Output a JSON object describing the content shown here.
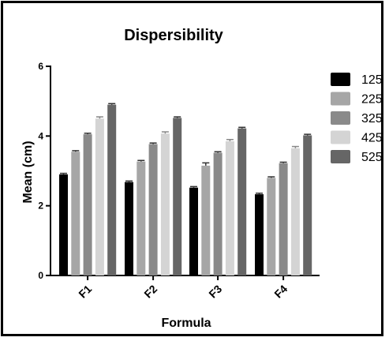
{
  "chart_data": {
    "type": "bar",
    "title": "Dispersibility",
    "xlabel": "Formula",
    "ylabel": "Mean (cm)",
    "categories": [
      "F1",
      "F2",
      "F3",
      "F4"
    ],
    "ylim": [
      0,
      6
    ],
    "yticks": [
      "0",
      "2",
      "4",
      "6"
    ],
    "legend_position": "right",
    "series": [
      {
        "name": "125",
        "values": [
          2.9,
          2.68,
          2.52,
          2.33
        ],
        "errors": [
          0.03,
          0.03,
          0.03,
          0.03
        ],
        "color": "#000000"
      },
      {
        "name": "225",
        "values": [
          3.55,
          3.27,
          3.15,
          2.8
        ],
        "errors": [
          0.03,
          0.03,
          0.08,
          0.03
        ],
        "color": "#a6a6a6"
      },
      {
        "name": "325",
        "values": [
          4.05,
          3.77,
          3.52,
          3.22
        ],
        "errors": [
          0.03,
          0.03,
          0.03,
          0.03
        ],
        "color": "#8a8a8a"
      },
      {
        "name": "425",
        "values": [
          4.5,
          4.07,
          3.85,
          3.65
        ],
        "errors": [
          0.05,
          0.05,
          0.05,
          0.05
        ],
        "color": "#d4d4d4"
      },
      {
        "name": "525",
        "values": [
          4.9,
          4.52,
          4.22,
          4.02
        ],
        "errors": [
          0.03,
          0.03,
          0.03,
          0.03
        ],
        "color": "#666666"
      }
    ]
  }
}
